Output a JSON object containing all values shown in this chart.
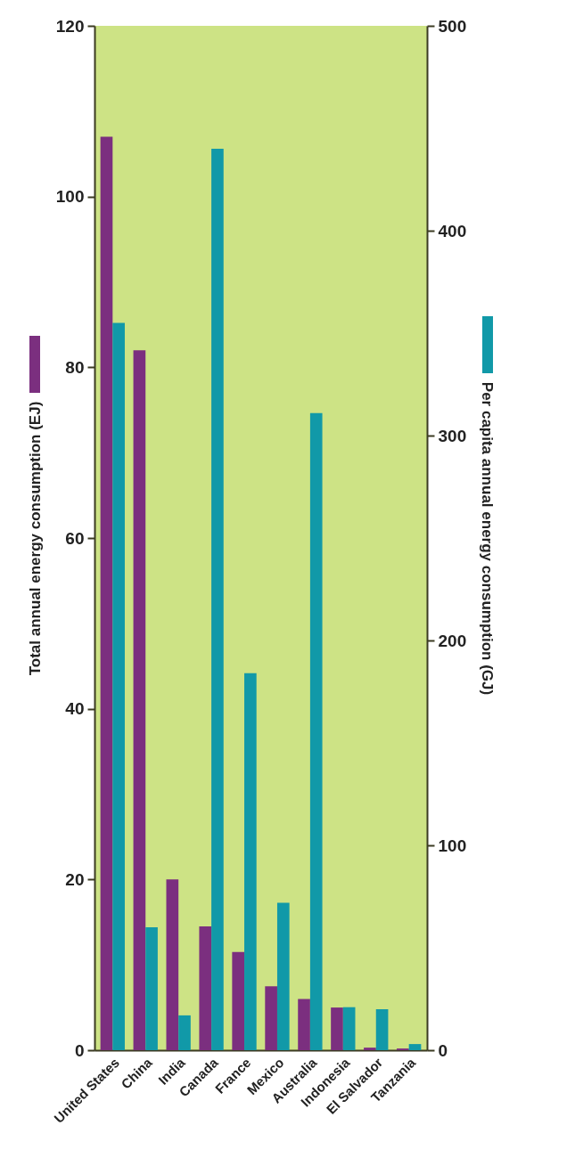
{
  "chart_data": {
    "type": "bar",
    "ylabel": "Total annual energy consumption (EJ)",
    "y2label": "Per capita annual energy consumption (GJ)",
    "categories": [
      "United States",
      "China",
      "India",
      "Canada",
      "France",
      "Mexico",
      "Australia",
      "Indonesia",
      "El Salvador",
      "Tanzania"
    ],
    "series": [
      {
        "color": "#7b2f7f",
        "values": [
          107,
          82,
          20,
          14.5,
          11.5,
          7.5,
          6,
          5,
          0.3,
          0.2
        ]
      },
      {
        "color": "#1199a8",
        "axis": "y2",
        "values": [
          355,
          60,
          17,
          440,
          184,
          72,
          311,
          21,
          20,
          3
        ]
      }
    ],
    "ylim": [
      0,
      120
    ],
    "yticks": [
      0,
      20,
      40,
      60,
      80,
      100,
      120
    ],
    "y2lim": [
      0,
      500
    ],
    "y2ticks": [
      0,
      100,
      200,
      300,
      400,
      500
    ]
  }
}
